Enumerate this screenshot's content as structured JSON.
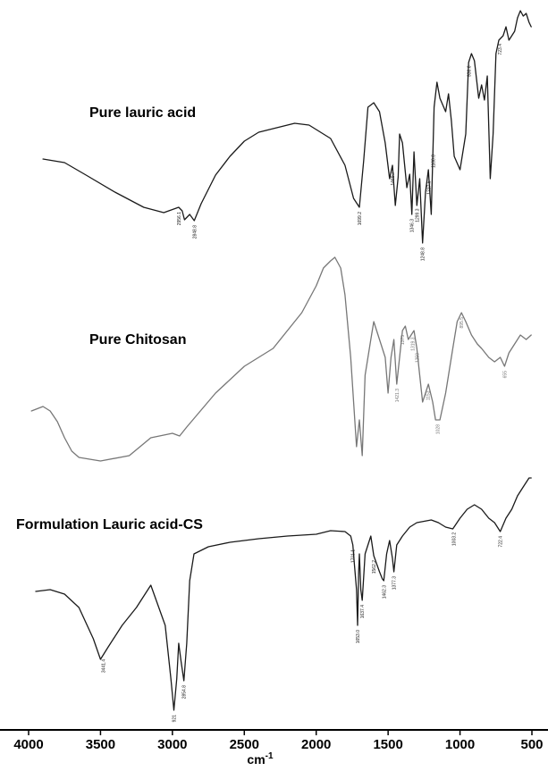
{
  "chart_data": {
    "type": "line",
    "title": "",
    "xlabel": "cm",
    "xlabel_superscript": "-1",
    "xlim": [
      4000,
      500
    ],
    "x_reversed": true,
    "grid": false,
    "x_ticks": [
      4000,
      3500,
      3000,
      2500,
      2000,
      1500,
      1000,
      500
    ],
    "x_tick_labels": [
      "4000",
      "3500",
      "3000",
      "2500",
      "2000",
      "1500",
      "1000",
      "500"
    ],
    "series": [
      {
        "name": "Pure lauric acid",
        "color": "#1a1a1a",
        "points": [
          [
            3900,
            178
          ],
          [
            3750,
            182
          ],
          [
            3600,
            196
          ],
          [
            3400,
            215
          ],
          [
            3200,
            232
          ],
          [
            3060,
            238
          ],
          [
            2956,
            232
          ],
          [
            2932,
            236
          ],
          [
            2916,
            246
          ],
          [
            2880,
            240
          ],
          [
            2848,
            247
          ],
          [
            2800,
            228
          ],
          [
            2700,
            196
          ],
          [
            2600,
            175
          ],
          [
            2500,
            158
          ],
          [
            2400,
            148
          ],
          [
            2250,
            142
          ],
          [
            2150,
            138
          ],
          [
            2050,
            140
          ],
          [
            1900,
            155
          ],
          [
            1800,
            185
          ],
          [
            1740,
            222
          ],
          [
            1700,
            232
          ],
          [
            1670,
            180
          ],
          [
            1640,
            120
          ],
          [
            1600,
            115
          ],
          [
            1560,
            125
          ],
          [
            1520,
            160
          ],
          [
            1490,
            200
          ],
          [
            1470,
            185
          ],
          [
            1450,
            230
          ],
          [
            1430,
            198
          ],
          [
            1420,
            150
          ],
          [
            1400,
            160
          ],
          [
            1370,
            210
          ],
          [
            1350,
            195
          ],
          [
            1335,
            240
          ],
          [
            1320,
            170
          ],
          [
            1300,
            230
          ],
          [
            1280,
            200
          ],
          [
            1260,
            272
          ],
          [
            1240,
            215
          ],
          [
            1220,
            190
          ],
          [
            1200,
            240
          ],
          [
            1180,
            120
          ],
          [
            1160,
            92
          ],
          [
            1140,
            110
          ],
          [
            1100,
            125
          ],
          [
            1080,
            105
          ],
          [
            1060,
            135
          ],
          [
            1040,
            175
          ],
          [
            1000,
            190
          ],
          [
            960,
            150
          ],
          [
            940,
            70
          ],
          [
            920,
            60
          ],
          [
            900,
            68
          ],
          [
            870,
            110
          ],
          [
            850,
            95
          ],
          [
            830,
            112
          ],
          [
            810,
            85
          ],
          [
            790,
            200
          ],
          [
            770,
            150
          ],
          [
            750,
            60
          ],
          [
            730,
            45
          ],
          [
            700,
            40
          ],
          [
            680,
            30
          ],
          [
            660,
            45
          ],
          [
            620,
            35
          ],
          [
            600,
            20
          ],
          [
            580,
            12
          ],
          [
            560,
            18
          ],
          [
            540,
            15
          ],
          [
            520,
            25
          ],
          [
            505,
            30
          ]
        ],
        "peak_labels": [
          {
            "x": 2956,
            "label": "2956.1"
          },
          {
            "x": 2848,
            "label": "2848.8"
          },
          {
            "x": 1700,
            "label": "1699.2"
          },
          {
            "x": 1469,
            "label": "1469.7"
          },
          {
            "x": 1335,
            "label": "1346.3"
          },
          {
            "x": 1299,
            "label": "1299.3"
          },
          {
            "x": 1260,
            "label": "1248.8"
          },
          {
            "x": 1217,
            "label": "1217.6"
          },
          {
            "x": 1188,
            "label": "1188.8"
          },
          {
            "x": 937,
            "label": "936.6"
          },
          {
            "x": 724,
            "label": "723.4"
          }
        ]
      },
      {
        "name": "Pure Chitosan",
        "color": "#777777",
        "points": [
          [
            3980,
            460
          ],
          [
            3900,
            455
          ],
          [
            3850,
            460
          ],
          [
            3800,
            472
          ],
          [
            3750,
            490
          ],
          [
            3700,
            505
          ],
          [
            3650,
            512
          ],
          [
            3500,
            516
          ],
          [
            3300,
            510
          ],
          [
            3150,
            490
          ],
          [
            3000,
            485
          ],
          [
            2950,
            488
          ],
          [
            2900,
            478
          ],
          [
            2700,
            440
          ],
          [
            2500,
            410
          ],
          [
            2300,
            390
          ],
          [
            2100,
            350
          ],
          [
            2000,
            320
          ],
          [
            1950,
            300
          ],
          [
            1900,
            292
          ],
          [
            1870,
            288
          ],
          [
            1830,
            300
          ],
          [
            1800,
            330
          ],
          [
            1760,
            400
          ],
          [
            1720,
            500
          ],
          [
            1700,
            470
          ],
          [
            1680,
            510
          ],
          [
            1660,
            420
          ],
          [
            1620,
            380
          ],
          [
            1600,
            360
          ],
          [
            1560,
            380
          ],
          [
            1520,
            400
          ],
          [
            1500,
            440
          ],
          [
            1480,
            400
          ],
          [
            1460,
            380
          ],
          [
            1440,
            430
          ],
          [
            1420,
            400
          ],
          [
            1400,
            370
          ],
          [
            1380,
            365
          ],
          [
            1360,
            380
          ],
          [
            1320,
            370
          ],
          [
            1300,
            390
          ],
          [
            1280,
            420
          ],
          [
            1260,
            450
          ],
          [
            1240,
            440
          ],
          [
            1220,
            430
          ],
          [
            1190,
            450
          ],
          [
            1170,
            470
          ],
          [
            1140,
            470
          ],
          [
            1100,
            440
          ],
          [
            1080,
            420
          ],
          [
            1050,
            390
          ],
          [
            1020,
            360
          ],
          [
            990,
            350
          ],
          [
            960,
            360
          ],
          [
            920,
            375
          ],
          [
            880,
            385
          ],
          [
            850,
            390
          ],
          [
            800,
            400
          ],
          [
            760,
            405
          ],
          [
            720,
            400
          ],
          [
            690,
            410
          ],
          [
            660,
            395
          ],
          [
            620,
            385
          ],
          [
            580,
            375
          ],
          [
            540,
            380
          ],
          [
            505,
            375
          ]
        ],
        "peak_labels": [
          {
            "x": 1440,
            "label": "1421.3"
          },
          {
            "x": 1400,
            "label": "1375"
          },
          {
            "x": 1330,
            "label": "1319.3"
          },
          {
            "x": 1300,
            "label": "1259"
          },
          {
            "x": 1225,
            "label": "1153"
          },
          {
            "x": 1155,
            "label": "1028"
          },
          {
            "x": 990,
            "label": "895.5"
          },
          {
            "x": 690,
            "label": "655"
          }
        ]
      },
      {
        "name": "Formulation Lauric acid-CS",
        "color": "#1a1a1a",
        "points": [
          [
            3950,
            662
          ],
          [
            3850,
            660
          ],
          [
            3750,
            665
          ],
          [
            3650,
            680
          ],
          [
            3550,
            715
          ],
          [
            3500,
            738
          ],
          [
            3450,
            725
          ],
          [
            3350,
            700
          ],
          [
            3250,
            680
          ],
          [
            3150,
            655
          ],
          [
            3050,
            700
          ],
          [
            3010,
            760
          ],
          [
            2990,
            795
          ],
          [
            2970,
            760
          ],
          [
            2956,
            720
          ],
          [
            2940,
            740
          ],
          [
            2920,
            762
          ],
          [
            2900,
            720
          ],
          [
            2880,
            650
          ],
          [
            2850,
            620
          ],
          [
            2750,
            612
          ],
          [
            2600,
            607
          ],
          [
            2500,
            605
          ],
          [
            2400,
            603
          ],
          [
            2200,
            600
          ],
          [
            2000,
            598
          ],
          [
            1900,
            594
          ],
          [
            1800,
            595
          ],
          [
            1760,
            600
          ],
          [
            1745,
            610
          ],
          [
            1735,
            630
          ],
          [
            1720,
            660
          ],
          [
            1712,
            700
          ],
          [
            1705,
            640
          ],
          [
            1700,
            620
          ],
          [
            1690,
            660
          ],
          [
            1680,
            672
          ],
          [
            1660,
            620
          ],
          [
            1620,
            600
          ],
          [
            1600,
            622
          ],
          [
            1560,
            640
          ],
          [
            1540,
            648
          ],
          [
            1530,
            650
          ],
          [
            1510,
            620
          ],
          [
            1490,
            605
          ],
          [
            1470,
            625
          ],
          [
            1460,
            640
          ],
          [
            1440,
            610
          ],
          [
            1400,
            600
          ],
          [
            1350,
            590
          ],
          [
            1300,
            585
          ],
          [
            1200,
            582
          ],
          [
            1150,
            585
          ],
          [
            1100,
            590
          ],
          [
            1050,
            592
          ],
          [
            1000,
            580
          ],
          [
            950,
            570
          ],
          [
            900,
            565
          ],
          [
            850,
            570
          ],
          [
            800,
            580
          ],
          [
            760,
            585
          ],
          [
            720,
            595
          ],
          [
            680,
            580
          ],
          [
            640,
            570
          ],
          [
            600,
            555
          ],
          [
            560,
            545
          ],
          [
            520,
            535
          ],
          [
            505,
            535
          ]
        ],
        "peak_labels": [
          {
            "x": 3480,
            "label": "3441.4"
          },
          {
            "x": 2990,
            "label": "921"
          },
          {
            "x": 2920,
            "label": "2854.8"
          },
          {
            "x": 1745,
            "label": "1701.1"
          },
          {
            "x": 1712,
            "label": "1653.0"
          },
          {
            "x": 1680,
            "label": "1637.4"
          },
          {
            "x": 1600,
            "label": "1562.2"
          },
          {
            "x": 1530,
            "label": "1462.3"
          },
          {
            "x": 1460,
            "label": "1377.3"
          },
          {
            "x": 1045,
            "label": "1003.2"
          },
          {
            "x": 720,
            "label": "722.4"
          }
        ]
      }
    ]
  }
}
